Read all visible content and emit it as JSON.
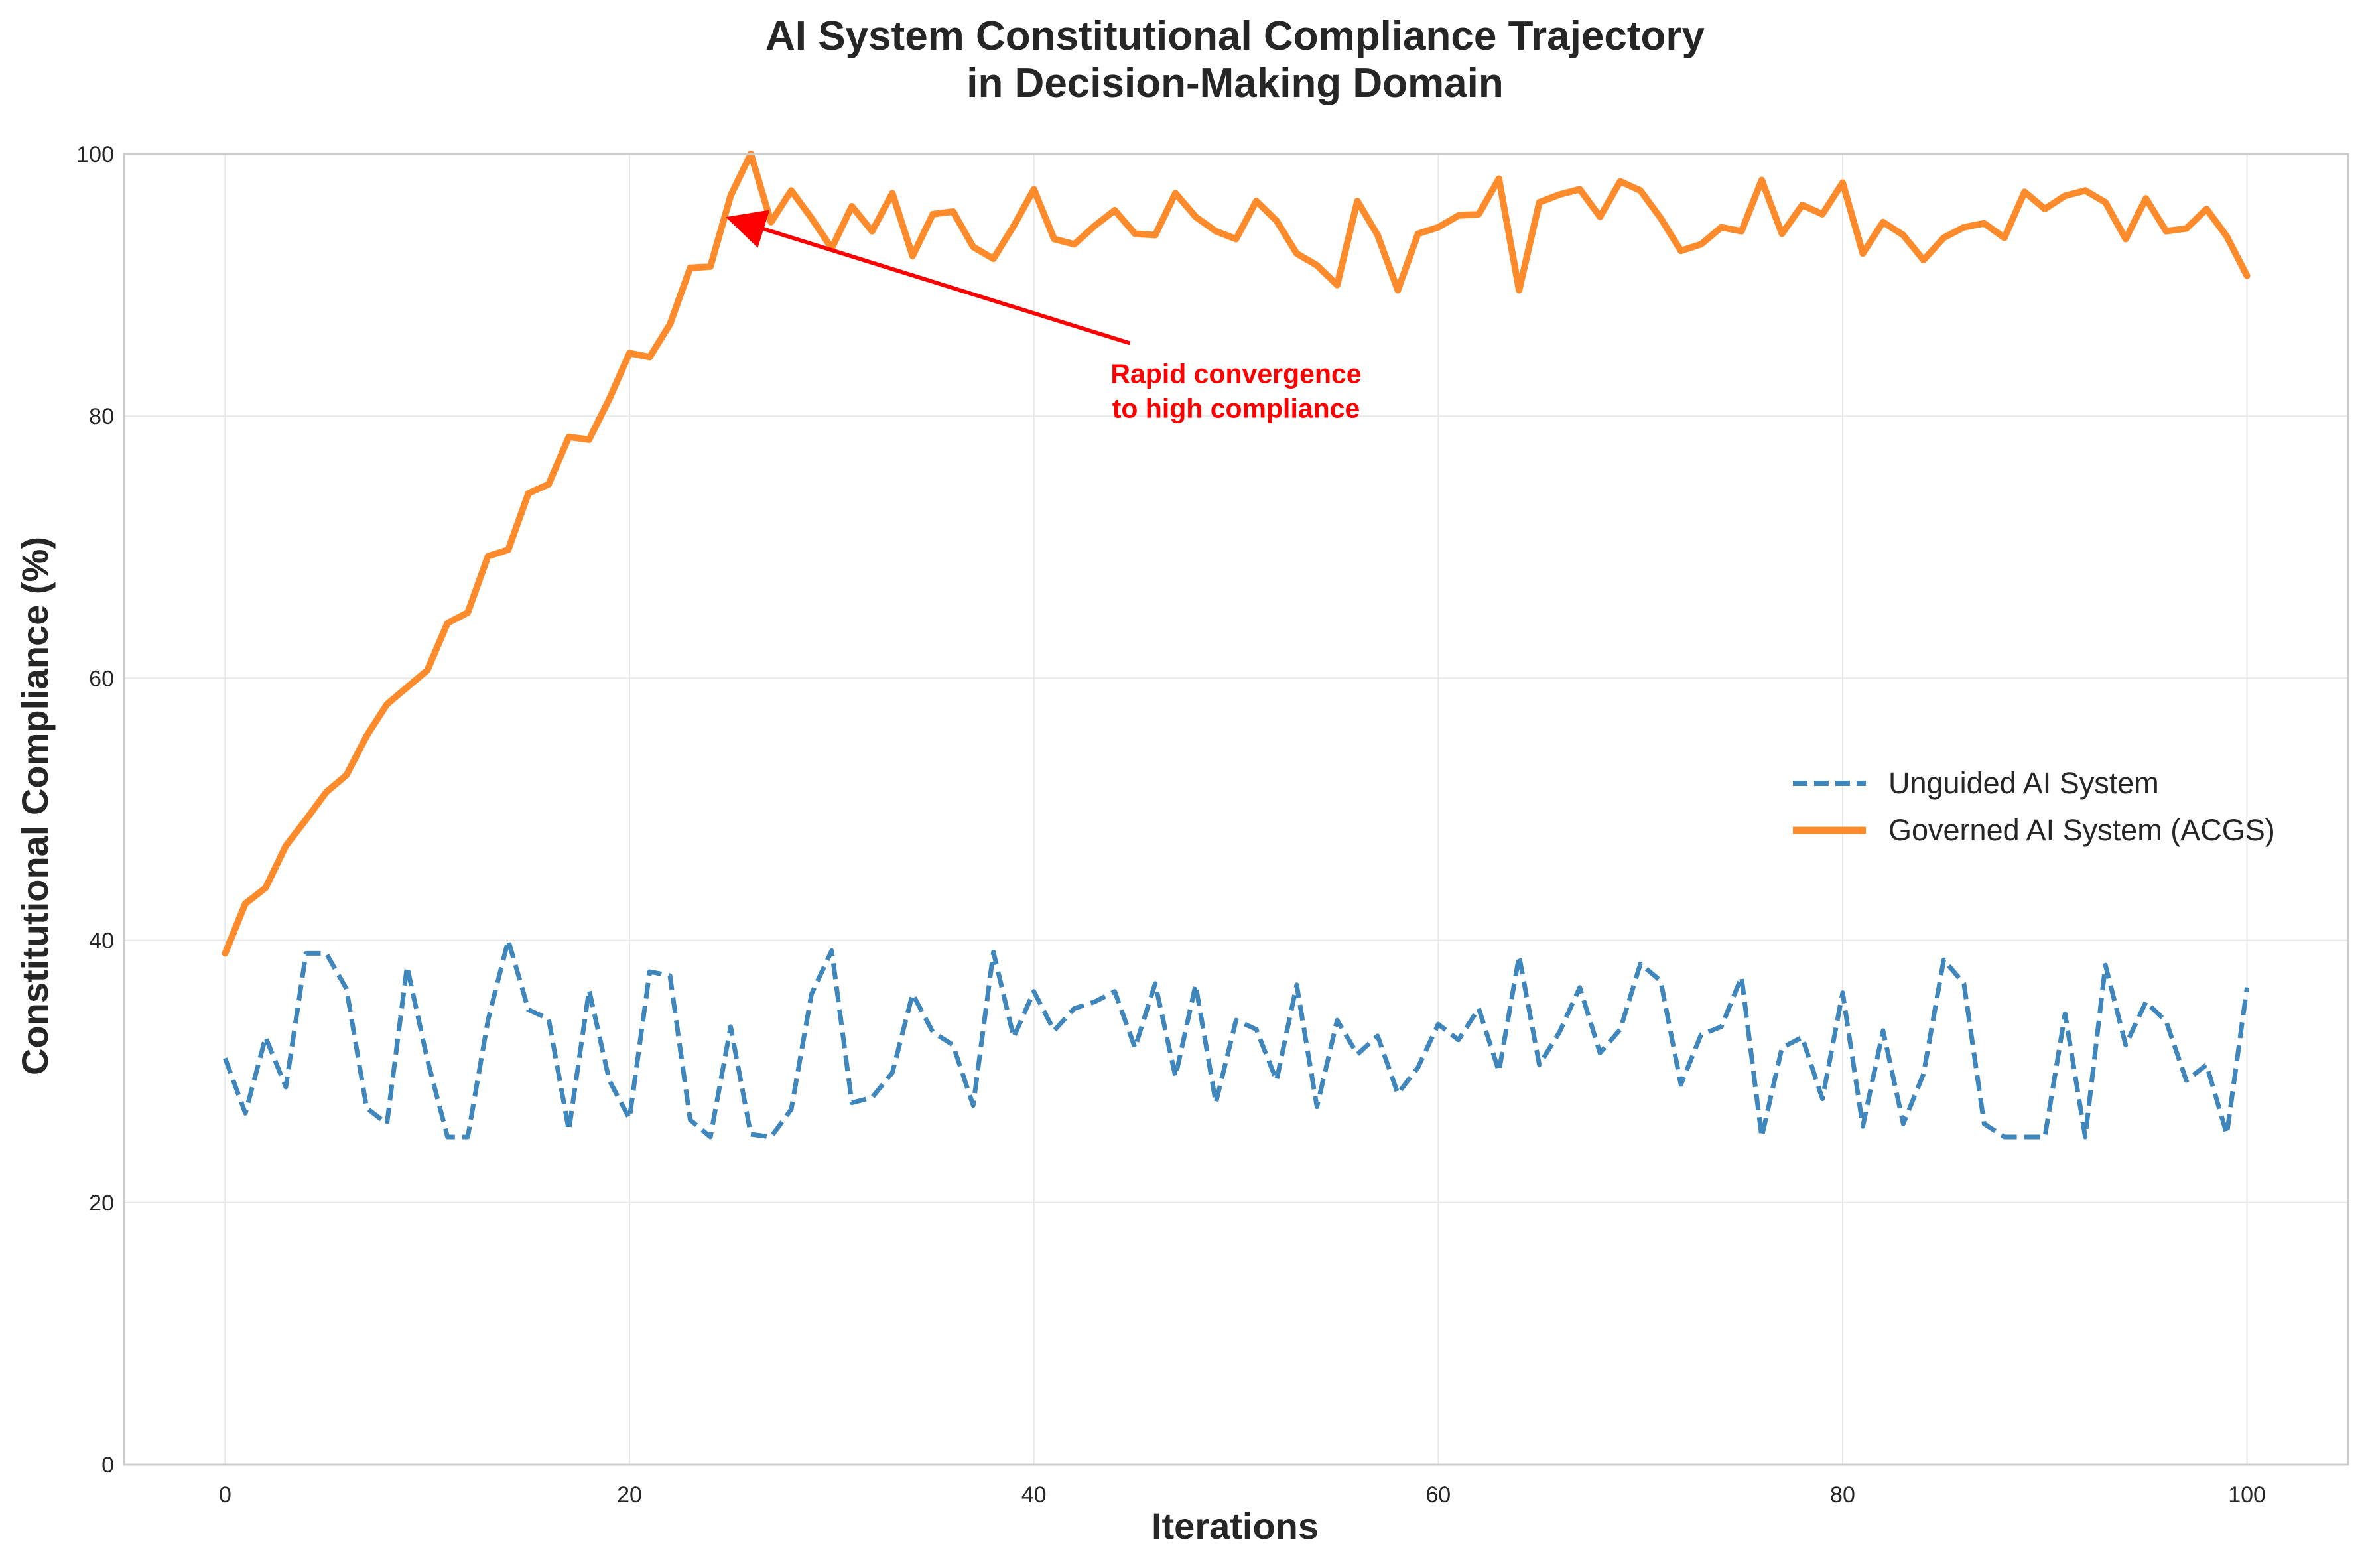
{
  "colors": {
    "unguided": "#3e86bb",
    "governed": "#fe8b2b",
    "annotation": "#ff0000",
    "grid": "#e8e8e8",
    "spine": "#cccccc"
  },
  "chart_data": {
    "type": "line",
    "title_line1": "AI System Constitutional Compliance Trajectory",
    "title_line2": "in Decision-Making Domain",
    "xlabel": "Iterations",
    "ylabel": "Constitutional Compliance (%)",
    "xlim": [
      -5,
      105
    ],
    "ylim": [
      0,
      100
    ],
    "xticks": [
      0,
      20,
      40,
      60,
      80,
      100
    ],
    "yticks": [
      0,
      20,
      40,
      60,
      80,
      100
    ],
    "xtick_labels": [
      "0",
      "20",
      "40",
      "60",
      "80",
      "100"
    ],
    "ytick_labels": [
      "0",
      "20",
      "40",
      "60",
      "80",
      "100"
    ],
    "grid": true,
    "legend_position": "center-right",
    "x": [
      0,
      1,
      2,
      3,
      4,
      5,
      6,
      7,
      8,
      9,
      10,
      11,
      12,
      13,
      14,
      15,
      16,
      17,
      18,
      19,
      20,
      21,
      22,
      23,
      24,
      25,
      26,
      27,
      28,
      29,
      30,
      31,
      32,
      33,
      34,
      35,
      36,
      37,
      38,
      39,
      40,
      41,
      42,
      43,
      44,
      45,
      46,
      47,
      48,
      49,
      50,
      51,
      52,
      53,
      54,
      55,
      56,
      57,
      58,
      59,
      60,
      61,
      62,
      63,
      64,
      65,
      66,
      67,
      68,
      69,
      70,
      71,
      72,
      73,
      74,
      75,
      76,
      77,
      78,
      79,
      80,
      81,
      82,
      83,
      84,
      85,
      86,
      87,
      88,
      89,
      90,
      91,
      92,
      93,
      94,
      95,
      96,
      97,
      98,
      99,
      100
    ],
    "series": [
      {
        "name": "Unguided AI System",
        "style": "dashed",
        "color": "#3e86bb",
        "values": [
          31,
          26.8,
          32.6,
          28.8,
          39,
          39,
          36.3,
          27.2,
          26,
          38,
          30.9,
          25,
          25,
          33.9,
          40,
          34.7,
          34,
          25.5,
          36.2,
          29.3,
          26.4,
          37.6,
          37.3,
          26.3,
          25,
          33.4,
          25.2,
          25,
          27.1,
          35.9,
          39.2,
          27.6,
          28,
          29.9,
          35.9,
          33,
          32,
          27.4,
          39.1,
          32.6,
          36.1,
          33.1,
          34.8,
          35.3,
          36.1,
          31.8,
          36.7,
          29.6,
          36.6,
          27.6,
          33.9,
          33.2,
          29.3,
          36.6,
          27.3,
          33.9,
          31.3,
          32.7,
          28.3,
          30.3,
          33.6,
          32.4,
          34.8,
          30,
          38.8,
          30.5,
          33,
          36.4,
          31.4,
          33.2,
          38.2,
          36.9,
          29,
          32.8,
          33.4,
          37.2,
          25,
          31.8,
          32.6,
          27.9,
          36,
          25.8,
          33.1,
          26,
          29.8,
          38.5,
          36.7,
          26,
          25,
          25,
          25,
          34.4,
          25,
          38.1,
          32,
          35.3,
          33.8,
          29.3,
          30.5,
          25.2,
          36.4
        ]
      },
      {
        "name": "Governed AI System (ACGS)",
        "style": "solid",
        "color": "#fe8b2b",
        "values": [
          39,
          42.8,
          44,
          47.2,
          49.2,
          51.3,
          52.6,
          55.6,
          58,
          59.3,
          60.6,
          64.2,
          65,
          69.3,
          69.8,
          74.1,
          74.8,
          78.4,
          78.2,
          81.3,
          84.8,
          84.5,
          87,
          91.3,
          91.4,
          96.8,
          100,
          94.8,
          97.2,
          95.1,
          92.8,
          96,
          94.1,
          97,
          92.2,
          95.4,
          95.6,
          92.9,
          92,
          94.5,
          97.3,
          93.5,
          93.1,
          94.5,
          95.7,
          93.9,
          93.8,
          97,
          95.2,
          94.1,
          93.5,
          96.4,
          94.9,
          92.4,
          91.5,
          90,
          96.4,
          93.8,
          89.6,
          93.9,
          94.4,
          95.3,
          95.4,
          98.1,
          89.6,
          96.3,
          96.9,
          97.3,
          95.2,
          97.9,
          97.2,
          95.1,
          92.6,
          93.1,
          94.4,
          94.1,
          98,
          93.9,
          96.1,
          95.4,
          97.8,
          92.4,
          94.8,
          93.8,
          91.9,
          93.6,
          94.4,
          94.7,
          93.6,
          97.1,
          95.8,
          96.8,
          97.2,
          96.3,
          93.5,
          96.6,
          94.1,
          94.3,
          95.8,
          93.7,
          90.7
        ]
      }
    ],
    "annotation": {
      "text_line1": "Rapid convergence",
      "text_line2": "to high compliance",
      "xy": [
        25.3,
        95
      ],
      "xytext": [
        50,
        81
      ]
    }
  }
}
